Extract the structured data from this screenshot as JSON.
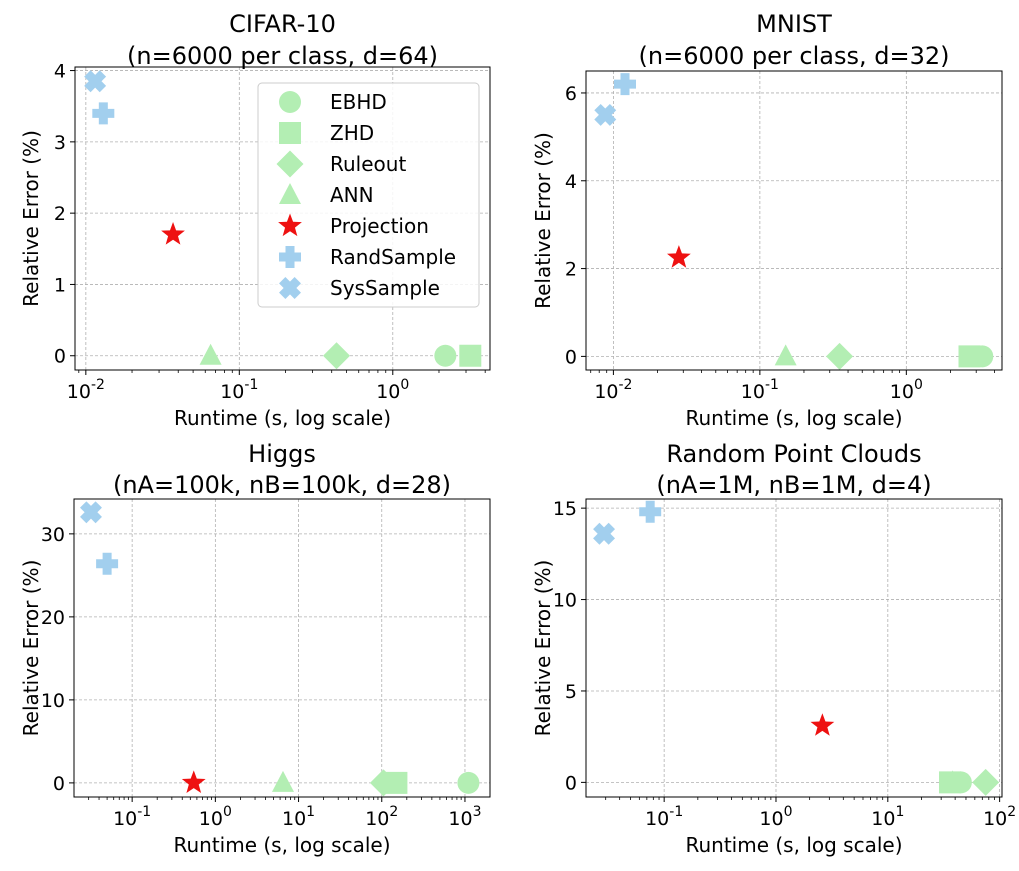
{
  "chart_data": [
    {
      "type": "scatter",
      "title": [
        "CIFAR-10",
        "(n=6000 per class, d=64)"
      ],
      "xlabel": "Runtime (s, log scale)",
      "ylabel": "Relative Error (%)",
      "xscale": "log",
      "xlim": [
        0.0085,
        4.3
      ],
      "ylim": [
        -0.2,
        4.05
      ],
      "xticks": [
        0.01,
        0.1,
        1
      ],
      "yticks": [
        0,
        1,
        2,
        3,
        4
      ],
      "yticklabels": [
        "0",
        "1",
        "2",
        "3",
        "4"
      ],
      "grid": true,
      "legend": "top-right",
      "series": [
        {
          "name": "EBHD",
          "marker": "circle",
          "color": "#b3eeb3",
          "points": [
            [
              2.2,
              0
            ]
          ]
        },
        {
          "name": "ZHD",
          "marker": "square",
          "color": "#b3eeb3",
          "points": [
            [
              3.2,
              0
            ]
          ]
        },
        {
          "name": "Ruleout",
          "marker": "diamond",
          "color": "#b3eeb3",
          "points": [
            [
              0.43,
              0
            ]
          ]
        },
        {
          "name": "ANN",
          "marker": "triangle",
          "color": "#b3eeb3",
          "points": [
            [
              0.065,
              0
            ]
          ]
        },
        {
          "name": "Projection",
          "marker": "star",
          "color": "#ee1111",
          "points": [
            [
              0.037,
              1.7
            ]
          ]
        },
        {
          "name": "RandSample",
          "marker": "plus",
          "color": "#a2cfee",
          "points": [
            [
              0.013,
              3.4
            ]
          ]
        },
        {
          "name": "SysSample",
          "marker": "x",
          "color": "#a2cfee",
          "points": [
            [
              0.0115,
              3.85
            ]
          ]
        }
      ]
    },
    {
      "type": "scatter",
      "title": [
        "MNIST",
        "(n=6000 per class, d=32)"
      ],
      "xlabel": "Runtime (s, log scale)",
      "ylabel": "Relative Error (%)",
      "xscale": "log",
      "xlim": [
        0.0065,
        4.5
      ],
      "ylim": [
        -0.31,
        6.5
      ],
      "xticks": [
        0.01,
        0.1,
        1
      ],
      "yticks": [
        0,
        2,
        4,
        6
      ],
      "yticklabels": [
        "0",
        "2",
        "4",
        "6"
      ],
      "grid": true,
      "series": [
        {
          "name": "EBHD",
          "marker": "circle",
          "color": "#b3eeb3",
          "points": [
            [
              3.3,
              0
            ]
          ]
        },
        {
          "name": "ZHD",
          "marker": "square",
          "color": "#b3eeb3",
          "points": [
            [
              2.7,
              0
            ]
          ]
        },
        {
          "name": "Ruleout",
          "marker": "diamond",
          "color": "#b3eeb3",
          "points": [
            [
              0.35,
              0
            ]
          ]
        },
        {
          "name": "ANN",
          "marker": "triangle",
          "color": "#b3eeb3",
          "points": [
            [
              0.15,
              0
            ]
          ]
        },
        {
          "name": "Projection",
          "marker": "star",
          "color": "#ee1111",
          "points": [
            [
              0.028,
              2.25
            ]
          ]
        },
        {
          "name": "RandSample",
          "marker": "plus",
          "color": "#a2cfee",
          "points": [
            [
              0.012,
              6.2
            ]
          ]
        },
        {
          "name": "SysSample",
          "marker": "x",
          "color": "#a2cfee",
          "points": [
            [
              0.0088,
              5.5
            ]
          ]
        }
      ]
    },
    {
      "type": "scatter",
      "title": [
        "Higgs",
        "(nA=100k, nB=100k, d=28)"
      ],
      "xlabel": "Runtime (s, log scale)",
      "ylabel": "Relative Error (%)",
      "xscale": "log",
      "xlim": [
        0.02,
        2000
      ],
      "ylim": [
        -1.7,
        34.2
      ],
      "xticks": [
        0.1,
        1,
        10,
        100,
        1000
      ],
      "yticks": [
        0,
        10,
        20,
        30
      ],
      "yticklabels": [
        "0",
        "10",
        "20",
        "30"
      ],
      "grid": true,
      "series": [
        {
          "name": "EBHD",
          "marker": "circle",
          "color": "#b3eeb3",
          "points": [
            [
              1100,
              0
            ]
          ]
        },
        {
          "name": "ZHD",
          "marker": "square",
          "color": "#b3eeb3",
          "points": [
            [
              150,
              0
            ]
          ]
        },
        {
          "name": "Ruleout",
          "marker": "diamond",
          "color": "#b3eeb3",
          "points": [
            [
              105,
              0
            ]
          ]
        },
        {
          "name": "ANN",
          "marker": "triangle",
          "color": "#b3eeb3",
          "points": [
            [
              6.5,
              0
            ]
          ]
        },
        {
          "name": "Projection",
          "marker": "star",
          "color": "#ee1111",
          "points": [
            [
              0.55,
              0
            ]
          ]
        },
        {
          "name": "RandSample",
          "marker": "plus",
          "color": "#a2cfee",
          "points": [
            [
              0.05,
              26.4
            ]
          ]
        },
        {
          "name": "SysSample",
          "marker": "x",
          "color": "#a2cfee",
          "points": [
            [
              0.032,
              32.6
            ]
          ]
        }
      ]
    },
    {
      "type": "scatter",
      "title": [
        "Random Point Clouds",
        "(nA=1M, nB=1M, d=4)"
      ],
      "xlabel": "Runtime (s, log scale)",
      "ylabel": "Relative Error (%)",
      "xscale": "log",
      "xlim": [
        0.02,
        105
      ],
      "ylim": [
        -0.8,
        15.5
      ],
      "xticks": [
        0.1,
        1,
        10,
        100
      ],
      "yticks": [
        0,
        5,
        10,
        15
      ],
      "yticklabels": [
        "0",
        "5",
        "10",
        "15"
      ],
      "grid": true,
      "series": [
        {
          "name": "EBHD",
          "marker": "circle",
          "color": "#b3eeb3",
          "points": [
            [
              45,
              0
            ]
          ]
        },
        {
          "name": "ZHD",
          "marker": "square",
          "color": "#b3eeb3",
          "points": [
            [
              36,
              0
            ]
          ]
        },
        {
          "name": "Ruleout",
          "marker": "diamond",
          "color": "#b3eeb3",
          "points": [
            [
              75,
              0
            ]
          ]
        },
        {
          "name": "ANN",
          "marker": "triangle",
          "color": "#b3eeb3",
          "points": [
            [
              38,
              0
            ]
          ]
        },
        {
          "name": "Projection",
          "marker": "star",
          "color": "#ee1111",
          "points": [
            [
              2.6,
              3.1
            ]
          ]
        },
        {
          "name": "RandSample",
          "marker": "plus",
          "color": "#a2cfee",
          "points": [
            [
              0.075,
              14.8
            ]
          ]
        },
        {
          "name": "SysSample",
          "marker": "x",
          "color": "#a2cfee",
          "points": [
            [
              0.029,
              13.6
            ]
          ]
        }
      ]
    }
  ]
}
